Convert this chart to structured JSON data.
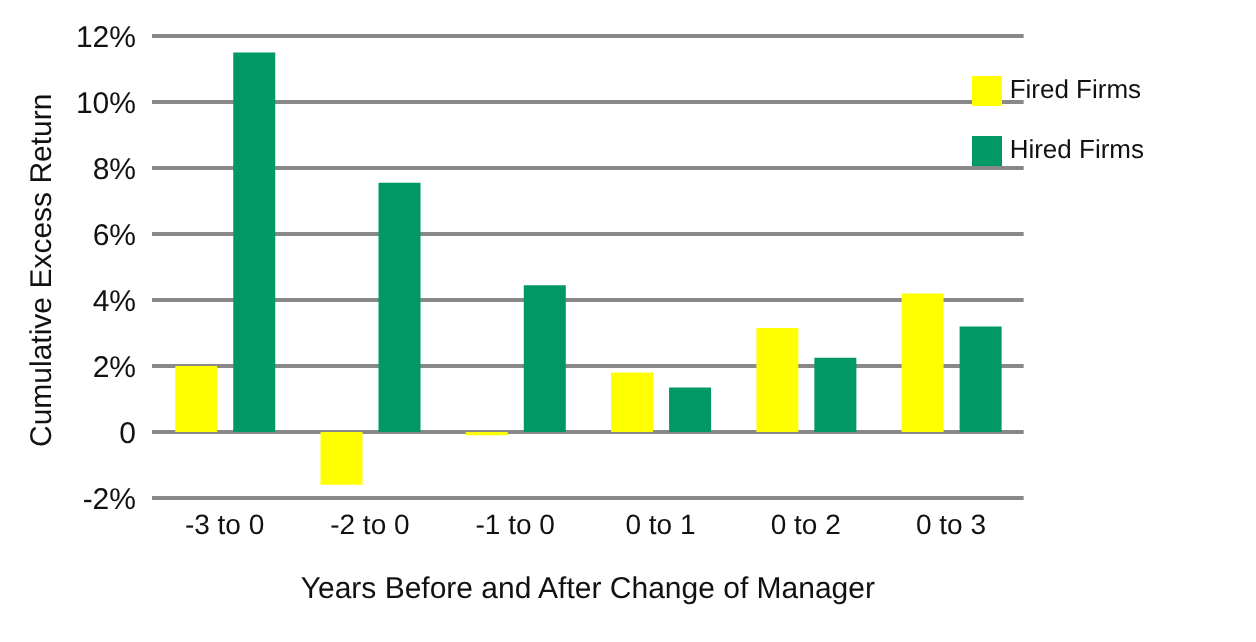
{
  "chart_data": {
    "type": "bar",
    "xlabel": "Years Before and After Change of Manager",
    "ylabel": "Cumulative Excess Return",
    "categories": [
      "-3 to 0",
      "-2 to 0",
      "-1 to 0",
      "0 to 1",
      "0 to 2",
      "0 to 3"
    ],
    "series": [
      {
        "name": "Fired Firms",
        "color": "#ffff00",
        "values": [
          2.0,
          -1.6,
          -0.1,
          1.8,
          3.15,
          4.2
        ]
      },
      {
        "name": "Hired Firms",
        "color": "#009966",
        "values": [
          11.5,
          7.55,
          4.45,
          1.35,
          2.25,
          3.2
        ]
      }
    ],
    "ylim": [
      -2,
      12
    ],
    "yticks": [
      {
        "value": -2,
        "label": "-2%"
      },
      0,
      {
        "value": 2,
        "label": "2%"
      },
      {
        "value": 4,
        "label": "4%"
      },
      {
        "value": 6,
        "label": "6%"
      },
      {
        "value": 8,
        "label": "8%"
      },
      {
        "value": 10,
        "label": "10%"
      },
      {
        "value": 12,
        "label": "12%"
      }
    ],
    "grid": "y",
    "legend": "top right"
  }
}
